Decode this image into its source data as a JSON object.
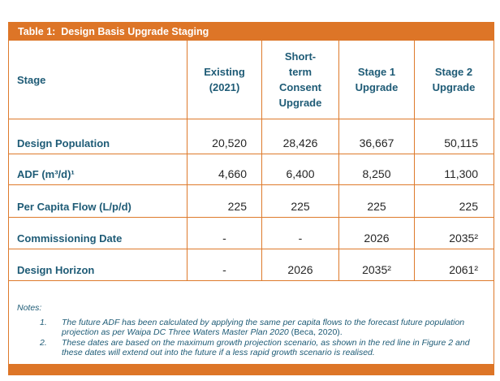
{
  "title": "Table 1:  Design Basis Upgrade Staging",
  "colors": {
    "orange_fill": "#DD7527",
    "orange_border": "#DE7A2B",
    "teal_text": "#1E5B76",
    "value_text": "#262626",
    "title_text": "#FFFFFF",
    "background": "#FFFFFF"
  },
  "grid": {
    "header": {
      "stage_label": "Stage",
      "cols": [
        "Existing\n(2021)",
        "Short-\nterm\nConsent\nUpgrade",
        "Stage 1\nUpgrade",
        "Stage 2\nUpgrade"
      ]
    },
    "rows": [
      {
        "label": "Design Population",
        "cells": [
          {
            "v": "20,520",
            "align": "right"
          },
          {
            "v": "28,426",
            "align": "center"
          },
          {
            "v": "36,667",
            "align": "center"
          },
          {
            "v": "50,115",
            "align": "right"
          }
        ]
      },
      {
        "label": "ADF (m³/d)¹",
        "cells": [
          {
            "v": "4,660",
            "align": "right"
          },
          {
            "v": "6,400",
            "align": "center"
          },
          {
            "v": "8,250",
            "align": "center"
          },
          {
            "v": "11,300",
            "align": "right"
          }
        ]
      },
      {
        "label": "Per Capita Flow (L/p/d)",
        "cells": [
          {
            "v": "225",
            "align": "right"
          },
          {
            "v": "225",
            "align": "center"
          },
          {
            "v": "225",
            "align": "center"
          },
          {
            "v": "225",
            "align": "right"
          }
        ]
      },
      {
        "label": "Commissioning Date",
        "cells": [
          {
            "v": "-",
            "align": "center"
          },
          {
            "v": "-",
            "align": "center"
          },
          {
            "v": "2026",
            "align": "center"
          },
          {
            "v": "2035²",
            "align": "right"
          }
        ]
      },
      {
        "label": "Design Horizon",
        "cells": [
          {
            "v": "-",
            "align": "center"
          },
          {
            "v": "2026",
            "align": "center"
          },
          {
            "v": "2035²",
            "align": "center"
          },
          {
            "v": "2061²",
            "align": "right"
          }
        ]
      }
    ]
  },
  "notes": {
    "heading": "Notes:",
    "items": [
      {
        "num": "1.",
        "text": "The future ADF has been calculated by applying the same per capita flows to the forecast future population projection as per Waipa DC Three Waters Master Plan 2020 ",
        "suffix": "(Beca, 2020)."
      },
      {
        "num": "2.",
        "text": "These dates are based on the maximum growth projection scenario, as shown in the red line in Figure 2 and these dates will extend out into the future if a less rapid growth scenario is realised.",
        "suffix": ""
      }
    ]
  }
}
